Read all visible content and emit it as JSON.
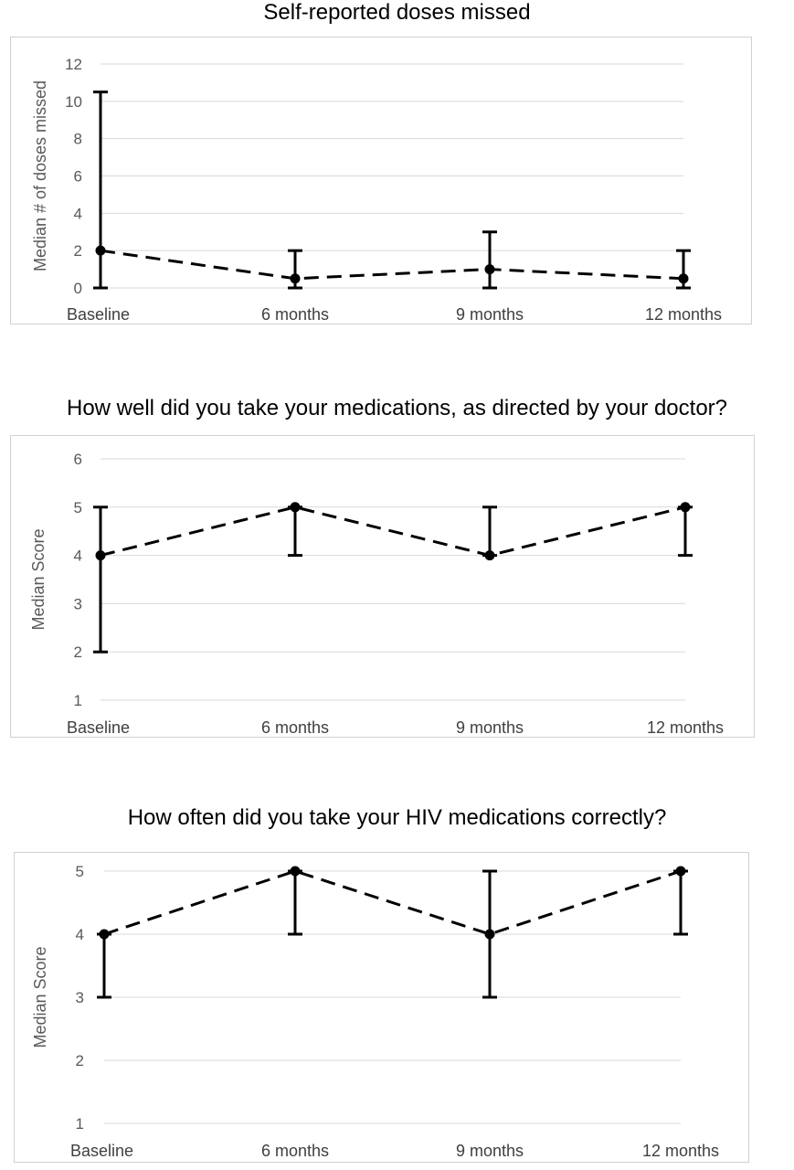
{
  "chart_data": [
    {
      "type": "line",
      "title": "Self-reported doses missed",
      "ylabel": "Median # of doses missed",
      "xlabel": "",
      "categories": [
        "Baseline",
        "6 months",
        "9 months",
        "12 months"
      ],
      "ylim": [
        0,
        12
      ],
      "yticks": [
        0,
        2,
        4,
        6,
        8,
        10,
        12
      ],
      "grid": true,
      "series": [
        {
          "values": [
            2,
            0.5,
            1,
            0.5
          ],
          "error_low": [
            0,
            0,
            0,
            0
          ],
          "error_high": [
            10.5,
            2,
            3,
            2
          ],
          "line_style": "dashed",
          "color": "#000000"
        }
      ]
    },
    {
      "type": "line",
      "title": "How well did you take your medications, as directed by your doctor?",
      "ylabel": "Median Score",
      "xlabel": "",
      "categories": [
        "Baseline",
        "6 months",
        "9 months",
        "12 months"
      ],
      "ylim": [
        1,
        6
      ],
      "yticks": [
        1,
        2,
        3,
        4,
        5,
        6
      ],
      "grid": true,
      "series": [
        {
          "values": [
            4,
            5,
            4,
            5
          ],
          "error_low": [
            2,
            4,
            4,
            4
          ],
          "error_high": [
            5,
            5,
            5,
            5
          ],
          "line_style": "dashed",
          "color": "#000000"
        }
      ]
    },
    {
      "type": "line",
      "title": "How often did you take your HIV medications correctly?",
      "ylabel": "Median Score",
      "xlabel": "",
      "categories": [
        "Baseline",
        "6 months",
        "9 months",
        "12 months"
      ],
      "ylim": [
        1,
        5
      ],
      "yticks": [
        1,
        2,
        3,
        4,
        5
      ],
      "grid": true,
      "series": [
        {
          "values": [
            4,
            5,
            4,
            5
          ],
          "error_low": [
            3,
            4,
            3,
            4
          ],
          "error_high": [
            4,
            5,
            5,
            5
          ],
          "line_style": "dashed",
          "color": "#000000"
        }
      ]
    }
  ]
}
